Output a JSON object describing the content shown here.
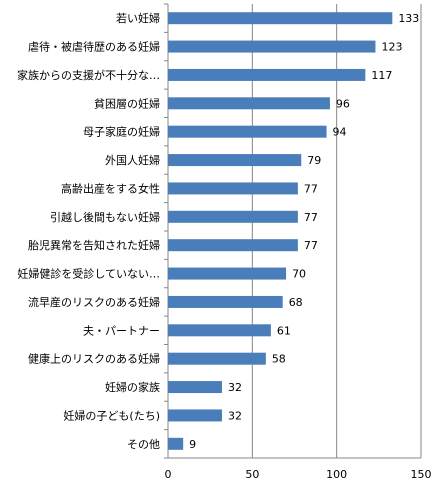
{
  "chart_data": {
    "type": "bar",
    "orientation": "horizontal",
    "categories": [
      "若い妊婦",
      "虐待・被虐待歴のある妊婦",
      "家族からの支援が不十分な…",
      "貧困層の妊婦",
      "母子家庭の妊婦",
      "外国人妊婦",
      "高齢出産をする女性",
      "引越し後間もない妊婦",
      "胎児異常を告知された妊婦",
      "妊婦健診を受診していない…",
      "流早産のリスクのある妊婦",
      "夫・パートナー",
      "健康上のリスクのある妊婦",
      "妊婦の家族",
      "妊婦の子ども(たち)",
      "その他"
    ],
    "values": [
      133,
      123,
      117,
      96,
      94,
      79,
      77,
      77,
      77,
      70,
      68,
      61,
      58,
      32,
      32,
      9
    ],
    "xlim": [
      0,
      150
    ],
    "xticks": [
      0,
      50,
      100,
      150
    ],
    "grid": "vertical",
    "legend": "none",
    "bar_color": "#4a7ebb",
    "title": "",
    "xlabel": "",
    "ylabel": ""
  }
}
